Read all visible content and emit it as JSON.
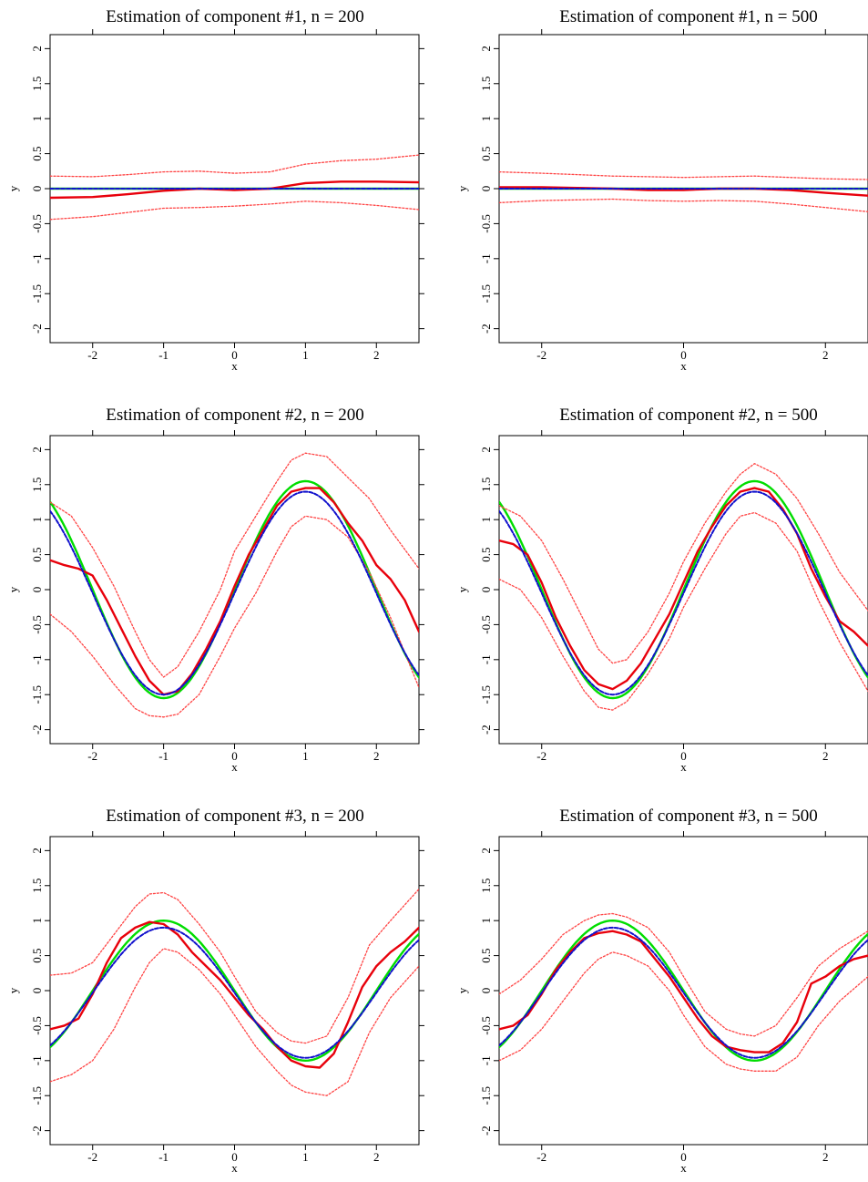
{
  "chart_data": [
    {
      "type": "line",
      "title": "Estimation of component #1, n = 200",
      "xlabel": "x",
      "ylabel": "y",
      "xlim": [
        -2.6,
        2.6
      ],
      "ylim": [
        -2.2,
        2.2
      ],
      "xticks": [
        -2,
        -1,
        0,
        1,
        2
      ],
      "yticks": [
        -2,
        -1.5,
        -1,
        -0.5,
        0,
        0.5,
        1,
        1.5,
        2
      ],
      "grid": false,
      "legend": "none",
      "series": [
        {
          "role": "upper-band",
          "color": "#ff4444",
          "dash": "dotted",
          "x": [
            -2.6,
            -2,
            -1.5,
            -1,
            -0.5,
            0,
            0.5,
            1,
            1.5,
            2,
            2.6
          ],
          "y": [
            0.18,
            0.17,
            0.2,
            0.24,
            0.25,
            0.22,
            0.24,
            0.35,
            0.4,
            0.42,
            0.48
          ]
        },
        {
          "role": "estimate",
          "color": "#e8000b",
          "dash": "solid",
          "x": [
            -2.6,
            -2,
            -1.5,
            -1,
            -0.5,
            0,
            0.5,
            1,
            1.5,
            2,
            2.6
          ],
          "y": [
            -0.13,
            -0.12,
            -0.08,
            -0.03,
            0,
            -0.02,
            0,
            0.08,
            0.1,
            0.1,
            0.09
          ]
        },
        {
          "role": "lower-band",
          "color": "#ff4444",
          "dash": "dotted",
          "x": [
            -2.6,
            -2,
            -1.5,
            -1,
            -0.5,
            0,
            0.5,
            1,
            1.5,
            2,
            2.6
          ],
          "y": [
            -0.44,
            -0.4,
            -0.34,
            -0.28,
            -0.27,
            -0.25,
            -0.22,
            -0.18,
            -0.2,
            -0.24,
            -0.3
          ]
        },
        {
          "role": "truth",
          "color": "#00dd00",
          "dash": "solid",
          "fn": "zero"
        },
        {
          "role": "mean",
          "color": "#1010cc",
          "dash": "dashed",
          "fn": "zero"
        }
      ]
    },
    {
      "type": "line",
      "title": "Estimation of component #1, n = 500",
      "xlabel": "x",
      "ylabel": "y",
      "xlim": [
        -2.6,
        2.6
      ],
      "ylim": [
        -2.2,
        2.2
      ],
      "xticks": [
        -2,
        0,
        2
      ],
      "yticks": [
        -2,
        -1.5,
        -1,
        -0.5,
        0,
        0.5,
        1,
        1.5,
        2
      ],
      "grid": false,
      "legend": "none",
      "series": [
        {
          "role": "upper-band",
          "color": "#ff4444",
          "dash": "dotted",
          "x": [
            -2.6,
            -2,
            -1.5,
            -1,
            -0.5,
            0,
            0.5,
            1,
            1.5,
            2,
            2.6
          ],
          "y": [
            0.24,
            0.22,
            0.2,
            0.18,
            0.17,
            0.16,
            0.17,
            0.18,
            0.16,
            0.14,
            0.13
          ]
        },
        {
          "role": "estimate",
          "color": "#e8000b",
          "dash": "solid",
          "x": [
            -2.6,
            -2,
            -1.5,
            -1,
            -0.5,
            0,
            0.5,
            1,
            1.5,
            2,
            2.6
          ],
          "y": [
            0.02,
            0.02,
            0.01,
            0,
            -0.02,
            -0.02,
            0,
            0,
            -0.02,
            -0.06,
            -0.1
          ]
        },
        {
          "role": "lower-band",
          "color": "#ff4444",
          "dash": "dotted",
          "x": [
            -2.6,
            -2,
            -1.5,
            -1,
            -0.5,
            0,
            0.5,
            1,
            1.5,
            2,
            2.6
          ],
          "y": [
            -0.2,
            -0.17,
            -0.16,
            -0.15,
            -0.17,
            -0.18,
            -0.17,
            -0.18,
            -0.22,
            -0.27,
            -0.33
          ]
        },
        {
          "role": "truth",
          "color": "#00dd00",
          "dash": "solid",
          "fn": "zero"
        },
        {
          "role": "mean",
          "color": "#1010cc",
          "dash": "dashed",
          "fn": "zero"
        }
      ]
    },
    {
      "type": "line",
      "title": "Estimation of component #2, n = 200",
      "xlabel": "x",
      "ylabel": "y",
      "xlim": [
        -2.6,
        2.6
      ],
      "ylim": [
        -2.2,
        2.2
      ],
      "xticks": [
        -2,
        -1,
        0,
        1,
        2
      ],
      "yticks": [
        -2,
        -1.5,
        -1,
        -0.5,
        0,
        0.5,
        1,
        1.5,
        2
      ],
      "grid": false,
      "legend": "none",
      "series": [
        {
          "role": "upper-band",
          "color": "#ff4444",
          "dash": "dotted",
          "x": [
            -2.6,
            -2.3,
            -2,
            -1.7,
            -1.4,
            -1.2,
            -1,
            -0.8,
            -0.5,
            -0.2,
            0,
            0.3,
            0.6,
            0.8,
            1,
            1.3,
            1.6,
            1.9,
            2.2,
            2.6
          ],
          "y": [
            1.25,
            1.05,
            0.6,
            0.05,
            -0.6,
            -1.0,
            -1.25,
            -1.1,
            -0.6,
            0,
            0.55,
            1.05,
            1.55,
            1.85,
            1.95,
            1.9,
            1.6,
            1.3,
            0.85,
            0.3
          ]
        },
        {
          "role": "estimate",
          "color": "#e8000b",
          "dash": "solid",
          "x": [
            -2.6,
            -2.4,
            -2.2,
            -2,
            -1.8,
            -1.6,
            -1.4,
            -1.2,
            -1,
            -0.8,
            -0.6,
            -0.4,
            -0.2,
            0,
            0.2,
            0.4,
            0.6,
            0.8,
            1,
            1.2,
            1.4,
            1.6,
            1.8,
            2,
            2.2,
            2.4,
            2.6
          ],
          "y": [
            0.42,
            0.35,
            0.3,
            0.2,
            -0.15,
            -0.55,
            -0.95,
            -1.3,
            -1.5,
            -1.45,
            -1.2,
            -0.85,
            -0.45,
            0.05,
            0.5,
            0.85,
            1.2,
            1.4,
            1.45,
            1.45,
            1.25,
            0.95,
            0.7,
            0.35,
            0.15,
            -0.15,
            -0.6
          ]
        },
        {
          "role": "lower-band",
          "color": "#ff4444",
          "dash": "dotted",
          "x": [
            -2.6,
            -2.3,
            -2,
            -1.7,
            -1.4,
            -1.2,
            -1,
            -0.8,
            -0.5,
            -0.2,
            0,
            0.3,
            0.6,
            0.8,
            1,
            1.3,
            1.6,
            1.9,
            2.2,
            2.6
          ],
          "y": [
            -0.35,
            -0.6,
            -0.95,
            -1.35,
            -1.7,
            -1.8,
            -1.82,
            -1.78,
            -1.5,
            -0.95,
            -0.55,
            -0.05,
            0.55,
            0.9,
            1.05,
            1.0,
            0.75,
            0.25,
            -0.4,
            -1.4
          ]
        },
        {
          "role": "truth",
          "color": "#00dd00",
          "dash": "solid",
          "fn": "sin",
          "amp": 1.55,
          "offset": 0
        },
        {
          "role": "mean",
          "color": "#1010cc",
          "dash": "dashed",
          "fn": "sin",
          "amp": 1.45,
          "offset": -0.05
        }
      ]
    },
    {
      "type": "line",
      "title": "Estimation of component #2, n = 500",
      "xlabel": "x",
      "ylabel": "y",
      "xlim": [
        -2.6,
        2.6
      ],
      "ylim": [
        -2.2,
        2.2
      ],
      "xticks": [
        -2,
        0,
        2
      ],
      "yticks": [
        -2,
        -1.5,
        -1,
        -0.5,
        0,
        0.5,
        1,
        1.5,
        2
      ],
      "grid": false,
      "legend": "none",
      "series": [
        {
          "role": "upper-band",
          "color": "#ff4444",
          "dash": "dotted",
          "x": [
            -2.6,
            -2.3,
            -2,
            -1.7,
            -1.4,
            -1.2,
            -1,
            -0.8,
            -0.5,
            -0.2,
            0,
            0.3,
            0.6,
            0.8,
            1,
            1.3,
            1.6,
            1.9,
            2.2,
            2.6
          ],
          "y": [
            1.2,
            1.05,
            0.7,
            0.15,
            -0.45,
            -0.85,
            -1.05,
            -1.0,
            -0.6,
            -0.05,
            0.4,
            0.95,
            1.4,
            1.65,
            1.8,
            1.65,
            1.3,
            0.8,
            0.25,
            -0.3
          ]
        },
        {
          "role": "estimate",
          "color": "#e8000b",
          "dash": "solid",
          "x": [
            -2.6,
            -2.4,
            -2.2,
            -2,
            -1.8,
            -1.6,
            -1.4,
            -1.2,
            -1,
            -0.8,
            -0.6,
            -0.4,
            -0.2,
            0,
            0.2,
            0.4,
            0.6,
            0.8,
            1,
            1.2,
            1.4,
            1.6,
            1.8,
            2,
            2.2,
            2.4,
            2.6
          ],
          "y": [
            0.7,
            0.65,
            0.5,
            0.1,
            -0.4,
            -0.8,
            -1.15,
            -1.35,
            -1.42,
            -1.3,
            -1.05,
            -0.7,
            -0.35,
            0.1,
            0.55,
            0.9,
            1.2,
            1.4,
            1.45,
            1.4,
            1.15,
            0.8,
            0.3,
            -0.1,
            -0.45,
            -0.6,
            -0.8
          ]
        },
        {
          "role": "lower-band",
          "color": "#ff4444",
          "dash": "dotted",
          "x": [
            -2.6,
            -2.3,
            -2,
            -1.7,
            -1.4,
            -1.2,
            -1,
            -0.8,
            -0.5,
            -0.2,
            0,
            0.3,
            0.6,
            0.8,
            1,
            1.3,
            1.6,
            1.9,
            2.2,
            2.6
          ],
          "y": [
            0.15,
            0.0,
            -0.4,
            -0.95,
            -1.45,
            -1.68,
            -1.72,
            -1.6,
            -1.2,
            -0.7,
            -0.25,
            0.3,
            0.8,
            1.05,
            1.1,
            0.95,
            0.55,
            -0.15,
            -0.75,
            -1.45
          ]
        },
        {
          "role": "truth",
          "color": "#00dd00",
          "dash": "solid",
          "fn": "sin",
          "amp": 1.55,
          "offset": 0
        },
        {
          "role": "mean",
          "color": "#1010cc",
          "dash": "dashed",
          "fn": "sin",
          "amp": 1.45,
          "offset": -0.05
        }
      ]
    },
    {
      "type": "line",
      "title": "Estimation of component #3, n = 200",
      "xlabel": "x",
      "ylabel": "y",
      "xlim": [
        -2.6,
        2.6
      ],
      "ylim": [
        -2.2,
        2.2
      ],
      "xticks": [
        -2,
        -1,
        0,
        1,
        2
      ],
      "yticks": [
        -2,
        -1.5,
        -1,
        -0.5,
        0,
        0.5,
        1,
        1.5,
        2
      ],
      "grid": false,
      "legend": "none",
      "series": [
        {
          "role": "upper-band",
          "color": "#ff4444",
          "dash": "dotted",
          "x": [
            -2.6,
            -2.3,
            -2,
            -1.7,
            -1.4,
            -1.2,
            -1,
            -0.8,
            -0.5,
            -0.2,
            0,
            0.3,
            0.6,
            0.8,
            1,
            1.3,
            1.6,
            1.9,
            2.2,
            2.6
          ],
          "y": [
            0.22,
            0.25,
            0.4,
            0.8,
            1.2,
            1.38,
            1.4,
            1.3,
            0.95,
            0.55,
            0.2,
            -0.3,
            -0.6,
            -0.72,
            -0.75,
            -0.65,
            -0.1,
            0.65,
            1.0,
            1.45
          ]
        },
        {
          "role": "estimate",
          "color": "#e8000b",
          "dash": "solid",
          "x": [
            -2.6,
            -2.4,
            -2.2,
            -2,
            -1.8,
            -1.6,
            -1.4,
            -1.2,
            -1,
            -0.8,
            -0.6,
            -0.4,
            -0.2,
            0,
            0.2,
            0.4,
            0.6,
            0.8,
            1,
            1.2,
            1.4,
            1.6,
            1.8,
            2,
            2.2,
            2.4,
            2.6
          ],
          "y": [
            -0.55,
            -0.5,
            -0.4,
            -0.05,
            0.4,
            0.75,
            0.9,
            0.98,
            0.95,
            0.8,
            0.55,
            0.35,
            0.15,
            -0.1,
            -0.35,
            -0.55,
            -0.8,
            -1.0,
            -1.08,
            -1.1,
            -0.9,
            -0.45,
            0.05,
            0.35,
            0.55,
            0.7,
            0.9
          ]
        },
        {
          "role": "lower-band",
          "color": "#ff4444",
          "dash": "dotted",
          "x": [
            -2.6,
            -2.3,
            -2,
            -1.7,
            -1.4,
            -1.2,
            -1,
            -0.8,
            -0.5,
            -0.2,
            0,
            0.3,
            0.6,
            0.8,
            1,
            1.3,
            1.6,
            1.9,
            2.2,
            2.6
          ],
          "y": [
            -1.3,
            -1.2,
            -1.0,
            -0.55,
            0.05,
            0.4,
            0.6,
            0.55,
            0.3,
            -0.05,
            -0.35,
            -0.8,
            -1.15,
            -1.35,
            -1.45,
            -1.5,
            -1.3,
            -0.6,
            -0.1,
            0.35
          ]
        },
        {
          "role": "truth",
          "color": "#00dd00",
          "dash": "solid",
          "fn": "negsin",
          "amp": 1.0,
          "offset": 0
        },
        {
          "role": "mean",
          "color": "#1010cc",
          "dash": "dashed",
          "fn": "negsin",
          "amp": 0.93,
          "offset": -0.03
        }
      ]
    },
    {
      "type": "line",
      "title": "Estimation of component #3, n = 500",
      "xlabel": "x",
      "ylabel": "y",
      "xlim": [
        -2.6,
        2.6
      ],
      "ylim": [
        -2.2,
        2.2
      ],
      "xticks": [
        -2,
        0,
        2
      ],
      "yticks": [
        -2,
        -1.5,
        -1,
        -0.5,
        0,
        0.5,
        1,
        1.5,
        2
      ],
      "grid": false,
      "legend": "none",
      "series": [
        {
          "role": "upper-band",
          "color": "#ff4444",
          "dash": "dotted",
          "x": [
            -2.6,
            -2.3,
            -2,
            -1.7,
            -1.4,
            -1.2,
            -1,
            -0.8,
            -0.5,
            -0.2,
            0,
            0.3,
            0.6,
            0.8,
            1,
            1.3,
            1.6,
            1.9,
            2.2,
            2.6
          ],
          "y": [
            -0.05,
            0.15,
            0.45,
            0.8,
            1.0,
            1.08,
            1.1,
            1.05,
            0.9,
            0.55,
            0.2,
            -0.3,
            -0.55,
            -0.62,
            -0.65,
            -0.5,
            -0.1,
            0.35,
            0.6,
            0.85
          ]
        },
        {
          "role": "estimate",
          "color": "#e8000b",
          "dash": "solid",
          "x": [
            -2.6,
            -2.4,
            -2.2,
            -2,
            -1.8,
            -1.6,
            -1.4,
            -1.2,
            -1,
            -0.8,
            -0.6,
            -0.4,
            -0.2,
            0,
            0.2,
            0.4,
            0.6,
            0.8,
            1,
            1.2,
            1.4,
            1.6,
            1.8,
            2,
            2.2,
            2.4,
            2.6
          ],
          "y": [
            -0.55,
            -0.5,
            -0.35,
            -0.05,
            0.3,
            0.55,
            0.75,
            0.82,
            0.85,
            0.8,
            0.7,
            0.45,
            0.2,
            -0.1,
            -0.4,
            -0.65,
            -0.8,
            -0.85,
            -0.88,
            -0.88,
            -0.75,
            -0.45,
            0.1,
            0.2,
            0.35,
            0.45,
            0.5
          ]
        },
        {
          "role": "lower-band",
          "color": "#ff4444",
          "dash": "dotted",
          "x": [
            -2.6,
            -2.3,
            -2,
            -1.7,
            -1.4,
            -1.2,
            -1,
            -0.8,
            -0.5,
            -0.2,
            0,
            0.3,
            0.6,
            0.8,
            1,
            1.3,
            1.6,
            1.9,
            2.2,
            2.6
          ],
          "y": [
            -1.0,
            -0.85,
            -0.55,
            -0.15,
            0.25,
            0.45,
            0.55,
            0.5,
            0.35,
            0.0,
            -0.35,
            -0.8,
            -1.05,
            -1.12,
            -1.15,
            -1.15,
            -0.95,
            -0.5,
            -0.15,
            0.2
          ]
        },
        {
          "role": "truth",
          "color": "#00dd00",
          "dash": "solid",
          "fn": "negsin",
          "amp": 1.0,
          "offset": 0
        },
        {
          "role": "mean",
          "color": "#1010cc",
          "dash": "dashed",
          "fn": "negsin",
          "amp": 0.93,
          "offset": -0.03
        }
      ]
    }
  ]
}
